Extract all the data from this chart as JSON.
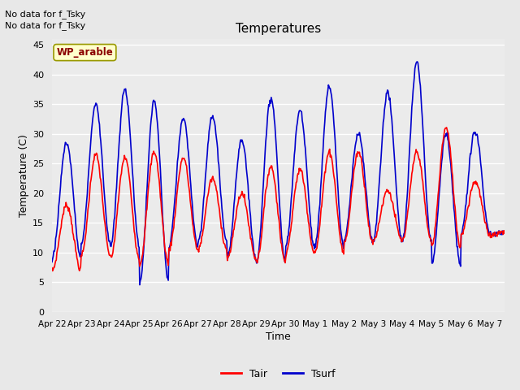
{
  "title": "Temperatures",
  "xlabel": "Time",
  "ylabel": "Temperature (C)",
  "ylim": [
    0,
    46
  ],
  "yticks": [
    0,
    5,
    10,
    15,
    20,
    25,
    30,
    35,
    40,
    45
  ],
  "bg_color": "#e8e8e8",
  "plot_bg_color": "#ebebeb",
  "annotations": [
    "No data for f_Tsky",
    "No data for f_Tsky"
  ],
  "legend_label": "WP_arable",
  "num_days": 15.5,
  "tair_color": "#ff0000",
  "tsurf_color": "#0000cc",
  "tair_lw": 1.2,
  "tsurf_lw": 1.2,
  "xtick_labels": [
    "Apr 22",
    "Apr 23",
    "Apr 24",
    "Apr 25",
    "Apr 26",
    "Apr 27",
    "Apr 28",
    "Apr 29",
    "Apr 30",
    "May 1",
    "May 2",
    "May 3",
    "May 4",
    "May 5",
    "May 6",
    "May 7"
  ],
  "daily_min_tair": [
    7.0,
    9.5,
    9.0,
    8.0,
    10.5,
    10.5,
    9.0,
    8.5,
    10.0,
    10.0,
    11.5,
    12.0,
    12.0,
    11.0,
    13.0,
    13.0
  ],
  "daily_max_tair": [
    18.0,
    26.5,
    26.0,
    27.0,
    26.0,
    22.5,
    20.0,
    24.5,
    24.0,
    27.0,
    27.0,
    20.5,
    27.0,
    31.0,
    22.0,
    13.5
  ],
  "daily_min_tsurf": [
    9.0,
    11.5,
    11.0,
    5.0,
    11.0,
    11.5,
    9.0,
    8.5,
    11.0,
    11.0,
    12.0,
    12.0,
    12.0,
    8.0,
    13.0,
    13.0
  ],
  "daily_max_tsurf": [
    28.5,
    35.0,
    37.5,
    35.5,
    32.5,
    33.0,
    29.0,
    36.0,
    34.0,
    38.0,
    30.0,
    37.0,
    42.0,
    30.0,
    30.5,
    13.5
  ],
  "grid_color": "white",
  "grid_lw": 1.0
}
